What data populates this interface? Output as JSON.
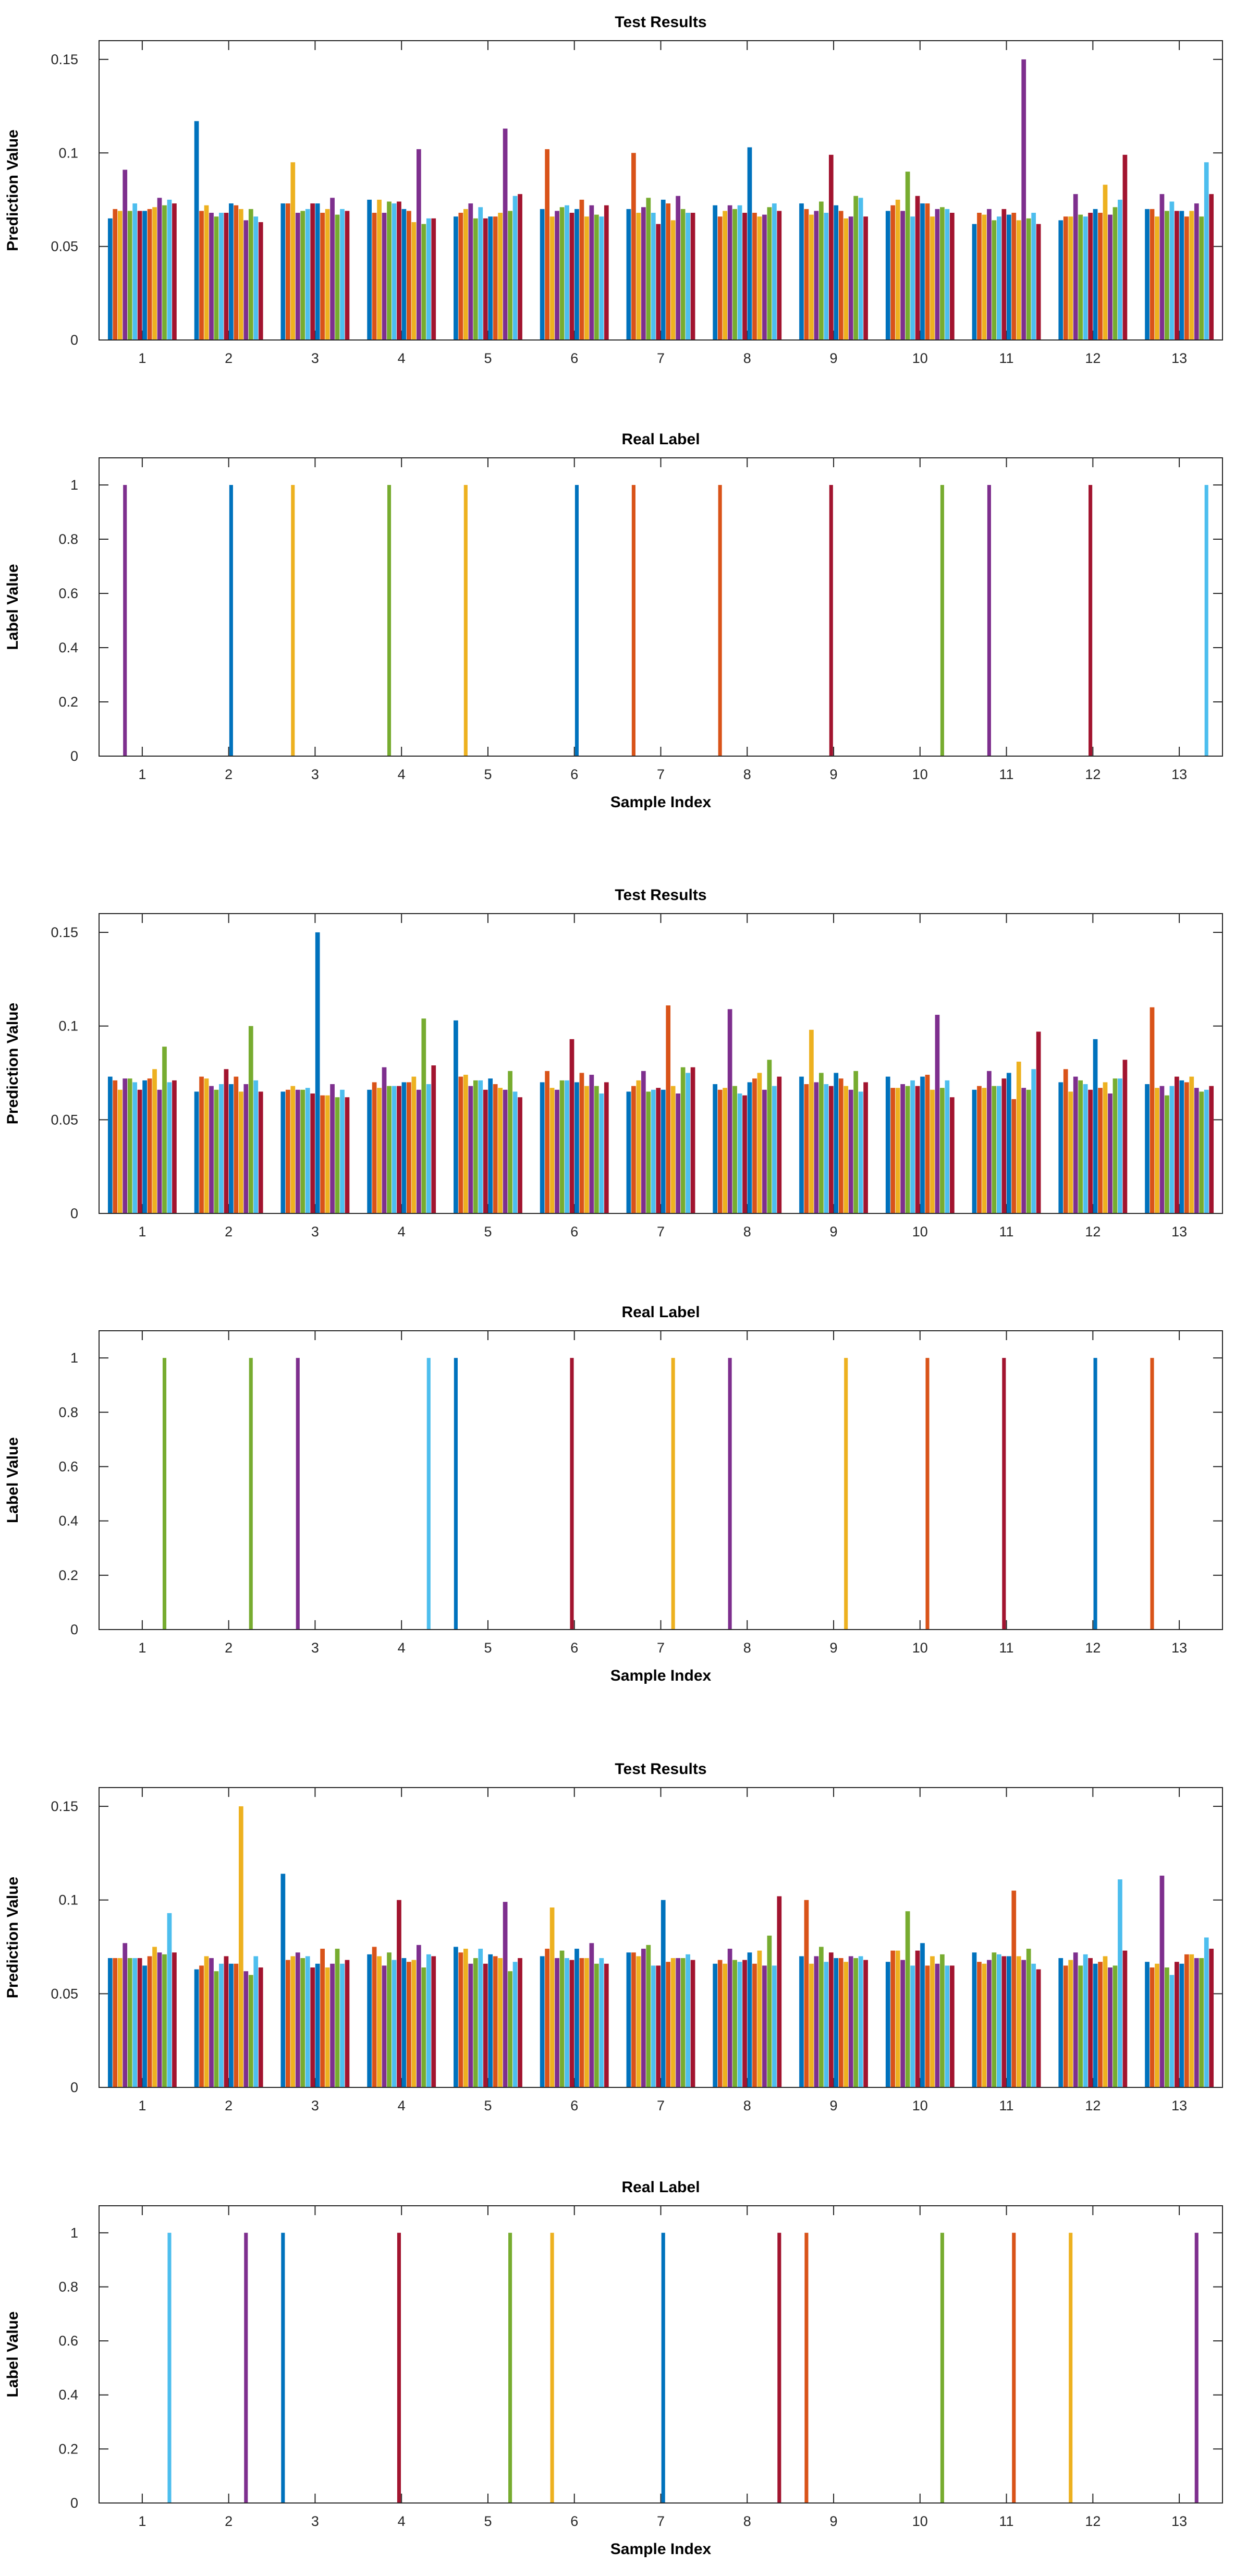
{
  "chart_data": [
    {
      "type": "bar",
      "title": "Test Results",
      "xlabel": "",
      "ylabel": "Prediction Value",
      "ylim": [
        0,
        0.16
      ],
      "yticks": [
        0,
        0.05,
        0.1,
        0.15
      ],
      "ytick_labels": [
        "0",
        "0.05",
        "0.1",
        "0.15"
      ],
      "categories": [
        "1",
        "2",
        "3",
        "4",
        "5",
        "6",
        "7",
        "8",
        "9",
        "10",
        "11",
        "12",
        "13"
      ],
      "series_colors": [
        "#0072BD",
        "#D95319",
        "#EDB120",
        "#7E2F8E",
        "#77AC30",
        "#4DBEEE",
        "#A2142F",
        "#0072BD",
        "#D95319",
        "#EDB120",
        "#7E2F8E",
        "#77AC30",
        "#4DBEEE",
        "#A2142F"
      ],
      "values": [
        [
          0.065,
          0.07,
          0.069,
          0.091,
          0.069,
          0.073,
          0.069,
          0.069,
          0.07,
          0.071,
          0.076,
          0.072,
          0.075,
          0.073
        ],
        [
          0.117,
          0.069,
          0.072,
          0.068,
          0.066,
          0.068,
          0.068,
          0.073,
          0.072,
          0.07,
          0.064,
          0.07,
          0.066,
          0.063
        ],
        [
          0.073,
          0.073,
          0.095,
          0.068,
          0.069,
          0.07,
          0.073,
          0.073,
          0.068,
          0.07,
          0.076,
          0.067,
          0.07,
          0.069
        ],
        [
          0.075,
          0.068,
          0.075,
          0.068,
          0.074,
          0.073,
          0.074,
          0.07,
          0.069,
          0.063,
          0.102,
          0.062,
          0.065,
          0.065
        ],
        [
          0.066,
          0.068,
          0.07,
          0.073,
          0.065,
          0.071,
          0.065,
          0.066,
          0.066,
          0.068,
          0.113,
          0.069,
          0.077,
          0.078
        ],
        [
          0.07,
          0.102,
          0.066,
          0.069,
          0.071,
          0.072,
          0.068,
          0.07,
          0.075,
          0.066,
          0.072,
          0.067,
          0.066,
          0.072
        ],
        [
          0.07,
          0.1,
          0.068,
          0.071,
          0.076,
          0.068,
          0.062,
          0.075,
          0.073,
          0.064,
          0.077,
          0.07,
          0.068,
          0.068
        ],
        [
          0.072,
          0.066,
          0.069,
          0.072,
          0.07,
          0.072,
          0.068,
          0.103,
          0.068,
          0.066,
          0.067,
          0.071,
          0.073,
          0.069
        ],
        [
          0.073,
          0.07,
          0.067,
          0.069,
          0.074,
          0.068,
          0.099,
          0.072,
          0.069,
          0.065,
          0.066,
          0.077,
          0.076,
          0.066
        ],
        [
          0.069,
          0.072,
          0.075,
          0.069,
          0.09,
          0.066,
          0.077,
          0.073,
          0.073,
          0.066,
          0.07,
          0.071,
          0.07,
          0.068
        ],
        [
          0.062,
          0.068,
          0.067,
          0.07,
          0.064,
          0.066,
          0.07,
          0.067,
          0.068,
          0.064,
          0.15,
          0.065,
          0.068,
          0.062
        ],
        [
          0.064,
          0.066,
          0.066,
          0.078,
          0.067,
          0.066,
          0.068,
          0.07,
          0.068,
          0.083,
          0.067,
          0.071,
          0.075,
          0.099
        ],
        [
          0.07,
          0.07,
          0.066,
          0.078,
          0.069,
          0.074,
          0.069,
          0.069,
          0.066,
          0.069,
          0.073,
          0.066,
          0.095,
          0.078
        ]
      ]
    },
    {
      "type": "bar",
      "title": "Real Label",
      "xlabel": "Sample Index",
      "ylabel": "Label Value",
      "ylim": [
        0,
        1.1
      ],
      "yticks": [
        0,
        0.2,
        0.4,
        0.6,
        0.8,
        1
      ],
      "ytick_labels": [
        "0",
        "0.2",
        "0.4",
        "0.6",
        "0.8",
        "1"
      ],
      "categories": [
        "1",
        "2",
        "3",
        "4",
        "5",
        "6",
        "7",
        "8",
        "9",
        "10",
        "11",
        "12",
        "13"
      ],
      "series_colors": [
        "#0072BD",
        "#D95319",
        "#EDB120",
        "#7E2F8E",
        "#77AC30",
        "#4DBEEE",
        "#A2142F",
        "#0072BD",
        "#D95319",
        "#EDB120",
        "#7E2F8E",
        "#77AC30",
        "#4DBEEE",
        "#A2142F"
      ],
      "hot_index": [
        3,
        7,
        2,
        4,
        2,
        7,
        1,
        1,
        6,
        11,
        3,
        6,
        12
      ],
      "values_note": "each sample has value 1 at hot_index series, 0 elsewhere"
    },
    {
      "type": "bar",
      "title": "Test Results",
      "xlabel": "",
      "ylabel": "Prediction Value",
      "ylim": [
        0,
        0.16
      ],
      "yticks": [
        0,
        0.05,
        0.1,
        0.15
      ],
      "ytick_labels": [
        "0",
        "0.05",
        "0.1",
        "0.15"
      ],
      "categories": [
        "1",
        "2",
        "3",
        "4",
        "5",
        "6",
        "7",
        "8",
        "9",
        "10",
        "11",
        "12",
        "13"
      ],
      "series_colors": [
        "#0072BD",
        "#D95319",
        "#EDB120",
        "#7E2F8E",
        "#77AC30",
        "#4DBEEE",
        "#A2142F",
        "#0072BD",
        "#D95319",
        "#EDB120",
        "#7E2F8E",
        "#77AC30",
        "#4DBEEE",
        "#A2142F"
      ],
      "values": [
        [
          0.073,
          0.071,
          0.066,
          0.072,
          0.072,
          0.07,
          0.066,
          0.071,
          0.072,
          0.077,
          0.066,
          0.089,
          0.07,
          0.071
        ],
        [
          0.065,
          0.073,
          0.072,
          0.068,
          0.066,
          0.069,
          0.077,
          0.069,
          0.073,
          0.065,
          0.069,
          0.1,
          0.071,
          0.065
        ],
        [
          0.065,
          0.066,
          0.068,
          0.066,
          0.066,
          0.067,
          0.064,
          0.15,
          0.063,
          0.063,
          0.069,
          0.062,
          0.066,
          0.062
        ],
        [
          0.066,
          0.07,
          0.067,
          0.078,
          0.068,
          0.068,
          0.068,
          0.07,
          0.07,
          0.073,
          0.066,
          0.104,
          0.069,
          0.079
        ],
        [
          0.103,
          0.073,
          0.074,
          0.068,
          0.071,
          0.071,
          0.066,
          0.072,
          0.069,
          0.067,
          0.066,
          0.076,
          0.065,
          0.062
        ],
        [
          0.07,
          0.076,
          0.067,
          0.066,
          0.071,
          0.071,
          0.093,
          0.07,
          0.075,
          0.068,
          0.074,
          0.068,
          0.064,
          0.07
        ],
        [
          0.065,
          0.068,
          0.071,
          0.076,
          0.065,
          0.066,
          0.067,
          0.066,
          0.111,
          0.068,
          0.064,
          0.078,
          0.075,
          0.078
        ],
        [
          0.069,
          0.066,
          0.067,
          0.109,
          0.068,
          0.064,
          0.063,
          0.07,
          0.072,
          0.075,
          0.066,
          0.082,
          0.068,
          0.073
        ],
        [
          0.073,
          0.069,
          0.098,
          0.07,
          0.075,
          0.069,
          0.068,
          0.075,
          0.072,
          0.068,
          0.066,
          0.076,
          0.065,
          0.07
        ],
        [
          0.073,
          0.067,
          0.067,
          0.069,
          0.068,
          0.071,
          0.068,
          0.073,
          0.074,
          0.066,
          0.106,
          0.067,
          0.071,
          0.062
        ],
        [
          0.066,
          0.068,
          0.067,
          0.076,
          0.068,
          0.068,
          0.072,
          0.075,
          0.061,
          0.081,
          0.067,
          0.066,
          0.077,
          0.097
        ],
        [
          0.07,
          0.077,
          0.065,
          0.073,
          0.071,
          0.069,
          0.066,
          0.093,
          0.067,
          0.07,
          0.064,
          0.072,
          0.072,
          0.082
        ],
        [
          0.069,
          0.11,
          0.067,
          0.068,
          0.063,
          0.068,
          0.073,
          0.071,
          0.07,
          0.073,
          0.067,
          0.065,
          0.066,
          0.068
        ]
      ]
    },
    {
      "type": "bar",
      "title": "Real Label",
      "xlabel": "Sample Index",
      "ylabel": "Label Value",
      "ylim": [
        0,
        1.1
      ],
      "yticks": [
        0,
        0.2,
        0.4,
        0.6,
        0.8,
        1
      ],
      "ytick_labels": [
        "0",
        "0.2",
        "0.4",
        "0.6",
        "0.8",
        "1"
      ],
      "categories": [
        "1",
        "2",
        "3",
        "4",
        "5",
        "6",
        "7",
        "8",
        "9",
        "10",
        "11",
        "12",
        "13"
      ],
      "series_colors": [
        "#0072BD",
        "#D95319",
        "#EDB120",
        "#7E2F8E",
        "#77AC30",
        "#4DBEEE",
        "#A2142F",
        "#0072BD",
        "#D95319",
        "#EDB120",
        "#7E2F8E",
        "#77AC30",
        "#4DBEEE",
        "#A2142F"
      ],
      "hot_index": [
        11,
        11,
        3,
        12,
        0,
        6,
        9,
        3,
        9,
        8,
        6,
        7,
        1
      ],
      "values_note": "each sample has value 1 at hot_index series, 0 elsewhere"
    },
    {
      "type": "bar",
      "title": "Test Results",
      "xlabel": "",
      "ylabel": "Prediction Value",
      "ylim": [
        0,
        0.16
      ],
      "yticks": [
        0,
        0.05,
        0.1,
        0.15
      ],
      "ytick_labels": [
        "0",
        "0.05",
        "0.1",
        "0.15"
      ],
      "categories": [
        "1",
        "2",
        "3",
        "4",
        "5",
        "6",
        "7",
        "8",
        "9",
        "10",
        "11",
        "12",
        "13"
      ],
      "series_colors": [
        "#0072BD",
        "#D95319",
        "#EDB120",
        "#7E2F8E",
        "#77AC30",
        "#4DBEEE",
        "#A2142F",
        "#0072BD",
        "#D95319",
        "#EDB120",
        "#7E2F8E",
        "#77AC30",
        "#4DBEEE",
        "#A2142F"
      ],
      "values": [
        [
          0.069,
          0.069,
          0.069,
          0.077,
          0.069,
          0.069,
          0.069,
          0.065,
          0.07,
          0.075,
          0.072,
          0.071,
          0.093,
          0.072
        ],
        [
          0.063,
          0.065,
          0.07,
          0.069,
          0.062,
          0.066,
          0.07,
          0.066,
          0.066,
          0.15,
          0.062,
          0.06,
          0.07,
          0.064
        ],
        [
          0.114,
          0.068,
          0.07,
          0.072,
          0.069,
          0.07,
          0.064,
          0.066,
          0.074,
          0.064,
          0.066,
          0.074,
          0.066,
          0.068
        ],
        [
          0.071,
          0.075,
          0.07,
          0.065,
          0.072,
          0.068,
          0.1,
          0.069,
          0.067,
          0.068,
          0.076,
          0.064,
          0.071,
          0.07
        ],
        [
          0.075,
          0.072,
          0.074,
          0.066,
          0.069,
          0.074,
          0.066,
          0.071,
          0.07,
          0.069,
          0.099,
          0.062,
          0.067,
          0.069
        ],
        [
          0.07,
          0.074,
          0.096,
          0.069,
          0.073,
          0.069,
          0.068,
          0.074,
          0.069,
          0.069,
          0.077,
          0.066,
          0.069,
          0.066
        ],
        [
          0.072,
          0.072,
          0.07,
          0.074,
          0.076,
          0.065,
          0.065,
          0.1,
          0.067,
          0.069,
          0.069,
          0.069,
          0.071,
          0.068
        ],
        [
          0.066,
          0.068,
          0.066,
          0.074,
          0.068,
          0.067,
          0.068,
          0.072,
          0.066,
          0.073,
          0.065,
          0.081,
          0.065,
          0.102
        ],
        [
          0.07,
          0.1,
          0.066,
          0.07,
          0.075,
          0.067,
          0.072,
          0.069,
          0.069,
          0.067,
          0.07,
          0.069,
          0.07,
          0.068
        ],
        [
          0.067,
          0.073,
          0.073,
          0.068,
          0.094,
          0.065,
          0.073,
          0.077,
          0.065,
          0.07,
          0.066,
          0.071,
          0.065,
          0.065
        ],
        [
          0.072,
          0.067,
          0.066,
          0.068,
          0.072,
          0.071,
          0.07,
          0.07,
          0.105,
          0.07,
          0.068,
          0.074,
          0.066,
          0.063
        ],
        [
          0.069,
          0.065,
          0.068,
          0.072,
          0.065,
          0.071,
          0.069,
          0.066,
          0.067,
          0.07,
          0.064,
          0.065,
          0.111,
          0.073
        ],
        [
          0.067,
          0.064,
          0.066,
          0.113,
          0.064,
          0.06,
          0.067,
          0.066,
          0.071,
          0.071,
          0.069,
          0.069,
          0.08,
          0.074
        ]
      ]
    },
    {
      "type": "bar",
      "title": "Real Label",
      "xlabel": "Sample Index",
      "ylabel": "Label Value",
      "ylim": [
        0,
        1.1
      ],
      "yticks": [
        0,
        0.2,
        0.4,
        0.6,
        0.8,
        1
      ],
      "ytick_labels": [
        "0",
        "0.2",
        "0.4",
        "0.6",
        "0.8",
        "1"
      ],
      "categories": [
        "1",
        "2",
        "3",
        "4",
        "5",
        "6",
        "7",
        "8",
        "9",
        "10",
        "11",
        "12",
        "13"
      ],
      "series_colors": [
        "#0072BD",
        "#D95319",
        "#EDB120",
        "#7E2F8E",
        "#77AC30",
        "#4DBEEE",
        "#A2142F",
        "#0072BD",
        "#D95319",
        "#EDB120",
        "#7E2F8E",
        "#77AC30",
        "#4DBEEE",
        "#A2142F"
      ],
      "hot_index": [
        12,
        10,
        0,
        6,
        11,
        2,
        7,
        13,
        1,
        11,
        8,
        2,
        10
      ],
      "values_note": "each sample has value 1 at hot_index series, 0 elsewhere"
    }
  ]
}
